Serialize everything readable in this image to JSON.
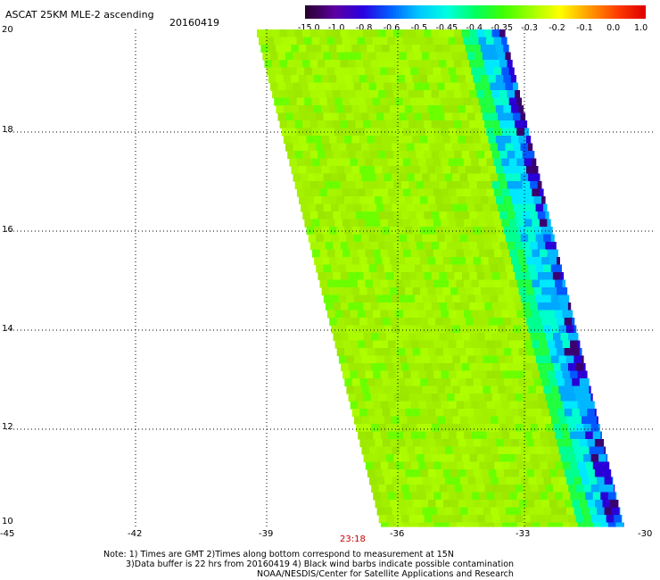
{
  "header": {
    "title": "ASCAT 25KM MLE-2 ascending",
    "date": "20160419"
  },
  "colorbar": {
    "labels": [
      "-15.0",
      "-1.0",
      "-0.8",
      "-0.6",
      "-0.5",
      "-0.45",
      "-0.4",
      "-0.35",
      "-0.3",
      "-0.2",
      "-0.1",
      "0.0",
      "1.0"
    ],
    "colors": [
      "#2a0030",
      "#5c00a0",
      "#2a00e0",
      "#0060ff",
      "#00c8ff",
      "#00ffe0",
      "#00ff60",
      "#40ff00",
      "#a0ff00",
      "#ffff00",
      "#ffa000",
      "#ff4000",
      "#e00000"
    ]
  },
  "axes": {
    "y_ticks": [
      "20",
      "18",
      "16",
      "14",
      "12",
      "10"
    ],
    "x_ticks": [
      "-45",
      "-42",
      "-39",
      "-36",
      "-33",
      "-30"
    ]
  },
  "swath": {
    "time_label": "23:18"
  },
  "notes": [
    "Note: 1) Times are GMT 2)Times along bottom correspond to measurement at 15N",
    "3)Data buffer is 22 hrs from 20160419 4) Black wind barbs indicate possible contamination",
    "NOAA/NESDIS/Center for Satellite Applications and Research"
  ]
}
